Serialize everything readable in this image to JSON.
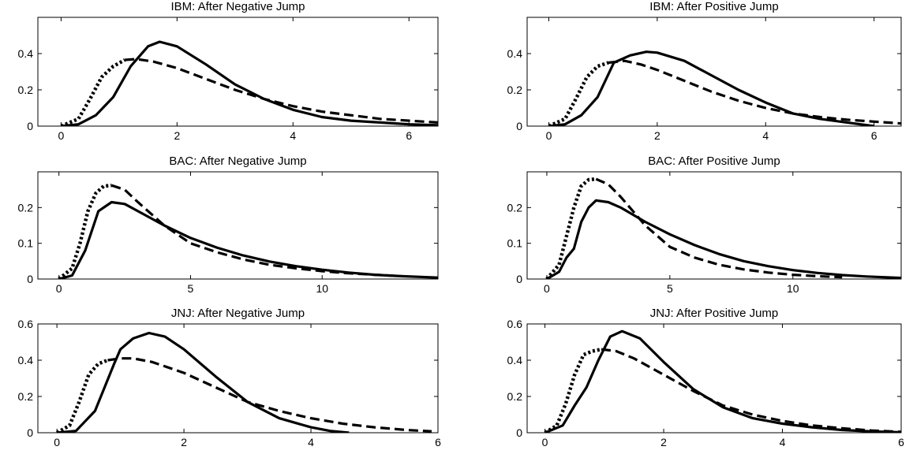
{
  "chart_data": [
    {
      "type": "line",
      "title": "IBM: After Negative Jump",
      "xlim": [
        -0.4,
        6.5
      ],
      "ylim": [
        0,
        0.6
      ],
      "xticks": [
        0,
        2,
        4,
        6
      ],
      "yticks": [
        0,
        0.2,
        0.4
      ],
      "series": [
        {
          "style": "solid",
          "x": [
            0,
            0.3,
            0.6,
            0.9,
            1.2,
            1.5,
            1.7,
            2.0,
            2.5,
            3.0,
            3.5,
            4.0,
            4.5,
            5.0,
            5.5,
            6.0,
            6.5
          ],
          "y": [
            0,
            0.01,
            0.06,
            0.16,
            0.33,
            0.44,
            0.465,
            0.44,
            0.34,
            0.23,
            0.15,
            0.09,
            0.05,
            0.03,
            0.02,
            0.01,
            0.005
          ]
        },
        {
          "style": "dotted",
          "x": [
            0,
            0.3,
            0.5,
            0.7,
            0.9,
            1.1
          ],
          "y": [
            0,
            0.04,
            0.15,
            0.27,
            0.33,
            0.365
          ]
        },
        {
          "style": "dashed",
          "x": [
            1.1,
            1.3,
            1.6,
            2.0,
            2.5,
            3.0,
            3.5,
            4.0,
            4.5,
            5.0,
            5.5,
            6.0,
            6.5
          ],
          "y": [
            0.365,
            0.37,
            0.355,
            0.32,
            0.26,
            0.2,
            0.15,
            0.11,
            0.08,
            0.06,
            0.04,
            0.03,
            0.02
          ]
        }
      ]
    },
    {
      "type": "line",
      "title": "IBM: After Positive Jump",
      "xlim": [
        -0.4,
        6.5
      ],
      "ylim": [
        0,
        0.6
      ],
      "xticks": [
        0,
        2,
        4,
        6
      ],
      "yticks": [
        0,
        0.2,
        0.4
      ],
      "series": [
        {
          "style": "solid",
          "x": [
            0,
            0.3,
            0.6,
            0.9,
            1.2,
            1.5,
            1.8,
            2.0,
            2.5,
            3.0,
            3.5,
            4.0,
            4.5,
            5.0,
            5.5,
            6.0
          ],
          "y": [
            0,
            0.01,
            0.06,
            0.16,
            0.35,
            0.39,
            0.41,
            0.405,
            0.36,
            0.28,
            0.2,
            0.13,
            0.07,
            0.04,
            0.02,
            0
          ]
        },
        {
          "style": "dotted",
          "x": [
            0,
            0.3,
            0.5,
            0.7,
            0.9,
            1.1
          ],
          "y": [
            0,
            0.04,
            0.15,
            0.27,
            0.33,
            0.35
          ]
        },
        {
          "style": "dashed",
          "x": [
            1.1,
            1.4,
            1.7,
            2.0,
            2.5,
            3.0,
            3.5,
            4.0,
            4.5,
            5.0,
            5.5,
            6.0,
            6.5
          ],
          "y": [
            0.35,
            0.36,
            0.34,
            0.31,
            0.25,
            0.19,
            0.14,
            0.1,
            0.07,
            0.05,
            0.035,
            0.025,
            0.015
          ]
        }
      ]
    },
    {
      "type": "line",
      "title": "BAC: After Negative Jump",
      "xlim": [
        -0.8,
        14.4
      ],
      "ylim": [
        0,
        0.3
      ],
      "xticks": [
        0,
        5,
        10
      ],
      "yticks": [
        0,
        0.1,
        0.2
      ],
      "series": [
        {
          "style": "solid",
          "x": [
            0,
            0.5,
            1.0,
            1.5,
            2.0,
            2.5,
            3.0,
            4.0,
            5.0,
            6.0,
            7.0,
            8.0,
            9.0,
            10.0,
            11.0,
            12.0,
            13.0,
            14.4
          ],
          "y": [
            0,
            0.01,
            0.08,
            0.19,
            0.215,
            0.21,
            0.19,
            0.15,
            0.115,
            0.088,
            0.066,
            0.049,
            0.036,
            0.026,
            0.018,
            0.012,
            0.008,
            0.004
          ]
        },
        {
          "style": "dotted",
          "x": [
            0,
            0.5,
            0.8,
            1.1,
            1.4,
            1.7,
            2.0
          ],
          "y": [
            0,
            0.03,
            0.1,
            0.19,
            0.24,
            0.26,
            0.262
          ]
        },
        {
          "style": "dashed",
          "x": [
            2.0,
            2.5,
            3.0,
            4.0,
            5.0,
            6.0,
            7.0,
            8.0,
            9.0,
            10.0,
            11.0,
            12.0,
            13.0
          ],
          "y": [
            0.262,
            0.25,
            0.215,
            0.15,
            0.1,
            0.075,
            0.055,
            0.04,
            0.03,
            0.022,
            0.016,
            0.012,
            0.008
          ]
        }
      ]
    },
    {
      "type": "line",
      "title": "BAC: After Positive Jump",
      "xlim": [
        -0.8,
        14.4
      ],
      "ylim": [
        0,
        0.3
      ],
      "xticks": [
        0,
        5,
        10
      ],
      "yticks": [
        0,
        0.1,
        0.2
      ],
      "series": [
        {
          "style": "solid",
          "x": [
            0,
            0.5,
            0.8,
            1.1,
            1.4,
            1.7,
            2.0,
            2.5,
            3.0,
            4.0,
            5.0,
            6.0,
            7.0,
            8.0,
            9.0,
            10.0,
            11.0,
            12.0,
            13.0,
            14.4
          ],
          "y": [
            0,
            0.02,
            0.06,
            0.085,
            0.16,
            0.2,
            0.22,
            0.215,
            0.2,
            0.16,
            0.125,
            0.095,
            0.07,
            0.05,
            0.036,
            0.025,
            0.017,
            0.011,
            0.007,
            0.003
          ]
        },
        {
          "style": "dotted",
          "x": [
            0,
            0.5,
            0.8,
            1.1,
            1.4,
            1.7,
            2.0
          ],
          "y": [
            0,
            0.04,
            0.12,
            0.2,
            0.26,
            0.278,
            0.28
          ]
        },
        {
          "style": "dashed",
          "x": [
            2.0,
            2.5,
            3.0,
            4.0,
            5.0,
            6.0,
            7.0,
            8.0,
            9.0,
            10.0,
            11.0,
            12.0
          ],
          "y": [
            0.28,
            0.265,
            0.23,
            0.15,
            0.09,
            0.06,
            0.04,
            0.027,
            0.018,
            0.012,
            0.008,
            0.005
          ]
        }
      ]
    },
    {
      "type": "line",
      "title": "JNJ: After Negative Jump",
      "xlim": [
        -0.3,
        6.0
      ],
      "ylim": [
        0,
        0.6
      ],
      "xticks": [
        0,
        2,
        4,
        6
      ],
      "yticks": [
        0,
        0.2,
        0.4,
        0.6
      ],
      "series": [
        {
          "style": "solid",
          "x": [
            0,
            0.3,
            0.6,
            0.9,
            1.0,
            1.2,
            1.45,
            1.7,
            2.0,
            2.5,
            3.0,
            3.5,
            4.0,
            4.3,
            4.6
          ],
          "y": [
            0,
            0.01,
            0.12,
            0.38,
            0.46,
            0.52,
            0.55,
            0.53,
            0.46,
            0.31,
            0.17,
            0.08,
            0.03,
            0.01,
            0
          ]
        },
        {
          "style": "dotted",
          "x": [
            0,
            0.2,
            0.35,
            0.5,
            0.65,
            0.8
          ],
          "y": [
            0,
            0.04,
            0.17,
            0.32,
            0.38,
            0.4
          ]
        },
        {
          "style": "dashed",
          "x": [
            0.8,
            1.0,
            1.2,
            1.5,
            2.0,
            2.5,
            3.0,
            3.5,
            4.0,
            4.5,
            5.0,
            5.5,
            5.9
          ],
          "y": [
            0.4,
            0.41,
            0.41,
            0.39,
            0.33,
            0.25,
            0.17,
            0.12,
            0.08,
            0.05,
            0.03,
            0.015,
            0.008
          ]
        }
      ]
    },
    {
      "type": "line",
      "title": "JNJ: After Positive Jump",
      "xlim": [
        -0.3,
        6.0
      ],
      "ylim": [
        0,
        0.6
      ],
      "xticks": [
        0,
        2,
        4,
        6
      ],
      "yticks": [
        0,
        0.2,
        0.4,
        0.6
      ],
      "series": [
        {
          "style": "solid",
          "x": [
            0,
            0.3,
            0.5,
            0.7,
            0.9,
            1.1,
            1.3,
            1.6,
            2.0,
            2.5,
            3.0,
            3.5,
            4.0,
            4.5,
            5.0,
            5.5,
            6.0
          ],
          "y": [
            0,
            0.04,
            0.15,
            0.25,
            0.4,
            0.53,
            0.56,
            0.52,
            0.39,
            0.24,
            0.14,
            0.08,
            0.05,
            0.03,
            0.015,
            0.007,
            0.002
          ]
        },
        {
          "style": "dotted",
          "x": [
            0,
            0.2,
            0.35,
            0.5,
            0.65,
            0.8,
            0.95
          ],
          "y": [
            0,
            0.04,
            0.16,
            0.32,
            0.43,
            0.45,
            0.46
          ]
        },
        {
          "style": "dashed",
          "x": [
            0.95,
            1.2,
            1.5,
            2.0,
            2.5,
            3.0,
            3.5,
            4.0,
            4.5,
            5.0,
            5.5,
            6.0
          ],
          "y": [
            0.46,
            0.45,
            0.41,
            0.32,
            0.23,
            0.15,
            0.1,
            0.065,
            0.04,
            0.025,
            0.012,
            0.005
          ]
        }
      ]
    }
  ]
}
